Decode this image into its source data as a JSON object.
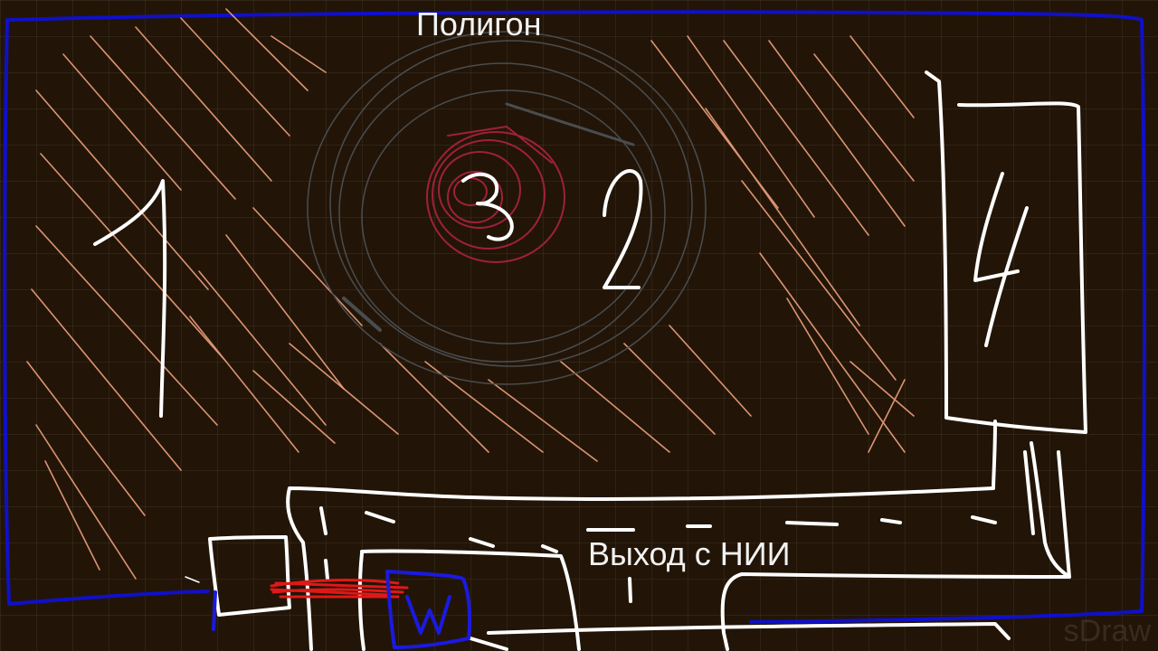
{
  "labels": {
    "title": "Полигон",
    "exit": "Выход с НИИ",
    "zone_1": "1",
    "zone_2": "2",
    "zone_3": "3",
    "zone_4": "4"
  },
  "app": {
    "watermark": "sDraw"
  },
  "colors": {
    "background": "#221507",
    "boundary": "#1010c8",
    "hatch": "#f0a27e",
    "polygon_circle": "#4a4d50",
    "center_scribble": "#a0203a",
    "strokes": "#ffffff",
    "barrier": "#e01818"
  }
}
